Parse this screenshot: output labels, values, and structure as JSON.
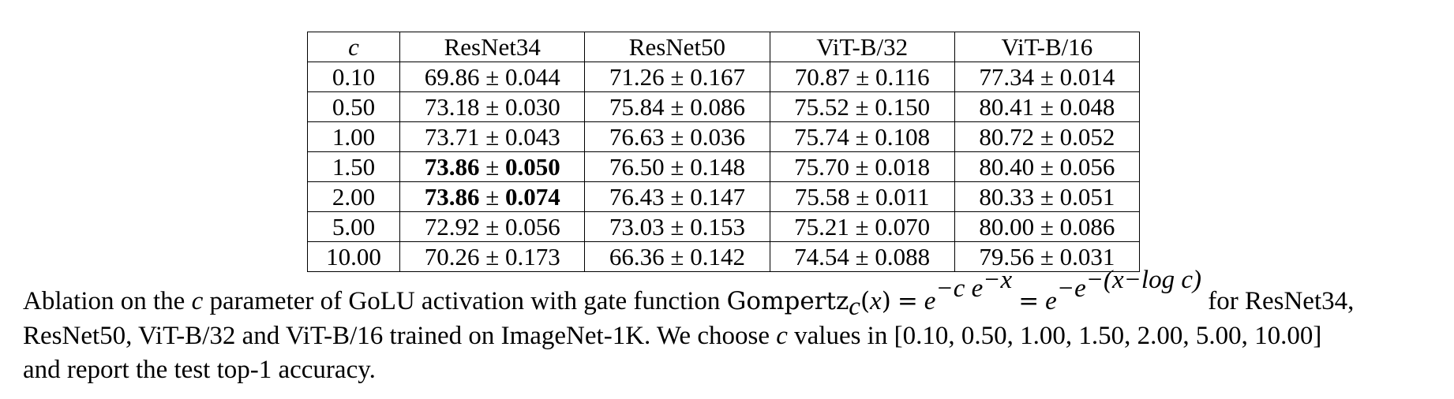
{
  "table": {
    "headers": [
      "c",
      "ResNet34",
      "ResNet50",
      "ViT-B/32",
      "ViT-B/16"
    ],
    "rows": [
      {
        "c": "0.10",
        "cells": [
          [
            "69.86",
            "0.044",
            false
          ],
          [
            "71.26",
            "0.167",
            false
          ],
          [
            "70.87",
            "0.116",
            false
          ],
          [
            "77.34",
            "0.014",
            false
          ]
        ]
      },
      {
        "c": "0.50",
        "cells": [
          [
            "73.18",
            "0.030",
            false
          ],
          [
            "75.84",
            "0.086",
            false
          ],
          [
            "75.52",
            "0.150",
            false
          ],
          [
            "80.41",
            "0.048",
            false
          ]
        ]
      },
      {
        "c": "1.00",
        "cells": [
          [
            "73.71",
            "0.043",
            false
          ],
          [
            "76.63",
            "0.036",
            false
          ],
          [
            "75.74",
            "0.108",
            false
          ],
          [
            "80.72",
            "0.052",
            false
          ]
        ]
      },
      {
        "c": "1.50",
        "cells": [
          [
            "73.86",
            "0.050",
            true
          ],
          [
            "76.50",
            "0.148",
            false
          ],
          [
            "75.70",
            "0.018",
            false
          ],
          [
            "80.40",
            "0.056",
            false
          ]
        ]
      },
      {
        "c": "2.00",
        "cells": [
          [
            "73.86",
            "0.074",
            true
          ],
          [
            "76.43",
            "0.147",
            false
          ],
          [
            "75.58",
            "0.011",
            false
          ],
          [
            "80.33",
            "0.051",
            false
          ]
        ]
      },
      {
        "c": "5.00",
        "cells": [
          [
            "72.92",
            "0.056",
            false
          ],
          [
            "73.03",
            "0.153",
            false
          ],
          [
            "75.21",
            "0.070",
            false
          ],
          [
            "80.00",
            "0.086",
            false
          ]
        ]
      },
      {
        "c": "10.00",
        "cells": [
          [
            "70.26",
            "0.173",
            false
          ],
          [
            "66.36",
            "0.142",
            false
          ],
          [
            "74.54",
            "0.088",
            false
          ],
          [
            "79.56",
            "0.031",
            false
          ]
        ]
      }
    ],
    "pm_symbol": "±"
  },
  "caption": {
    "line1_a": "Ablation on the ",
    "c_symbol": "c",
    "line1_b": " parameter of GoLU activation with gate function ",
    "formula": {
      "func_name": "Gompertz",
      "func_sub": "c",
      "func_arg": "(x)",
      "equals": "=",
      "base": "e",
      "exp1": "−c e",
      "exp1_sup": "−x",
      "exp2": "−e",
      "exp2_sup": "−(x−log c)"
    },
    "line1_c": " for ResNet34,",
    "line2": "ResNet50, ViT-B/32 and ViT-B/16 trained on ImageNet-1K. We choose ",
    "line2_b": " values in [0.10, 0.50, 1.00, 1.50, 2.00, 5.00, 10.00]",
    "line3": "and report the test top-1 accuracy."
  }
}
